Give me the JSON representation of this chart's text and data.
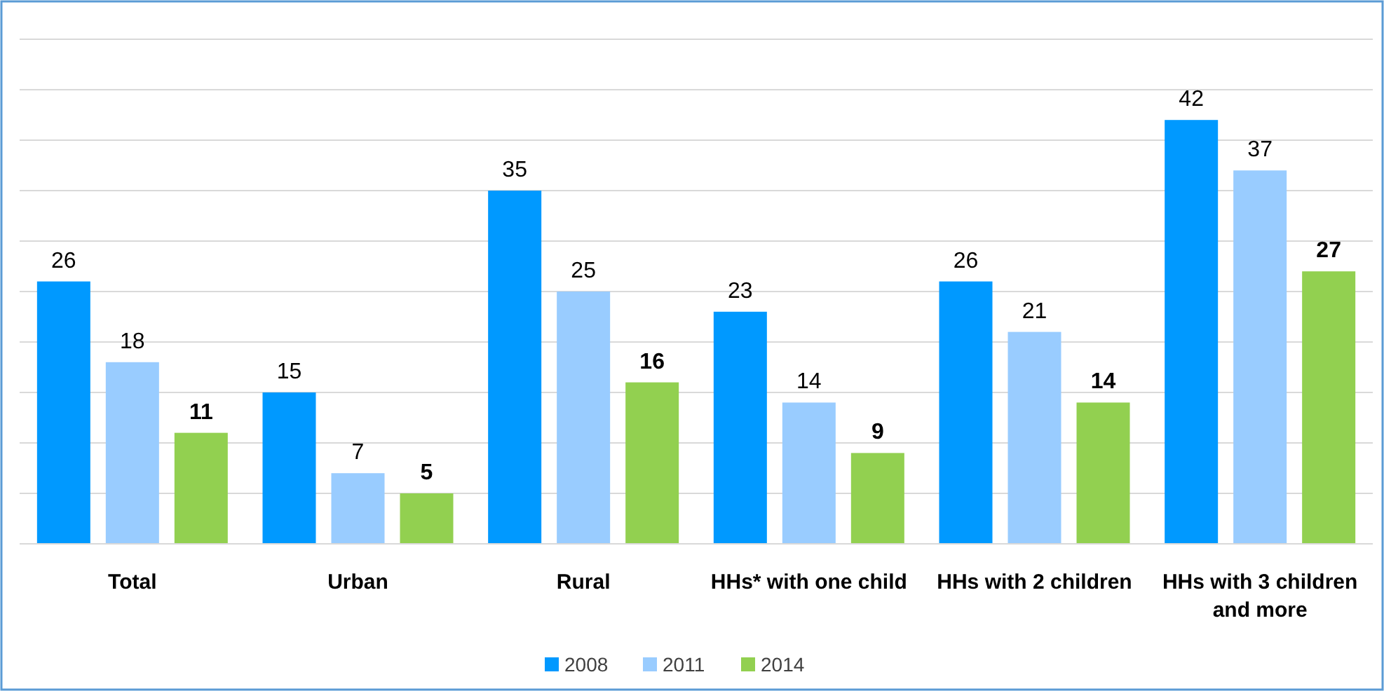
{
  "chart_data": {
    "type": "bar",
    "categories": [
      "Total",
      "Urban",
      "Rural",
      "HHs* with one child",
      "HHs with 2 children",
      "HHs with 3 children and more"
    ],
    "series": [
      {
        "name": "2008",
        "color": "#0099ff",
        "values": [
          26,
          15,
          35,
          23,
          26,
          42
        ]
      },
      {
        "name": "2011",
        "color": "#99ccff",
        "values": [
          18,
          7,
          25,
          14,
          21,
          37
        ]
      },
      {
        "name": "2014",
        "color": "#92d050",
        "values": [
          11,
          5,
          16,
          9,
          14,
          27
        ]
      }
    ],
    "ylim": [
      0,
      50
    ],
    "yticks": [
      {
        "value": 0,
        "label": null
      },
      {
        "value": 5,
        "label": null
      },
      {
        "value": 10,
        "label": null
      },
      {
        "value": 15,
        "label": null
      },
      {
        "value": 20,
        "label": null
      },
      {
        "value": 25,
        "label": null
      },
      {
        "value": 30,
        "label": null
      },
      {
        "value": 35,
        "label": null
      },
      {
        "value": 40,
        "label": null
      },
      {
        "value": 45,
        "label": null
      },
      {
        "value": 50,
        "label": null
      }
    ],
    "tick_labels": "x",
    "grid": "y",
    "data_labels": true,
    "legend": "bottom"
  }
}
